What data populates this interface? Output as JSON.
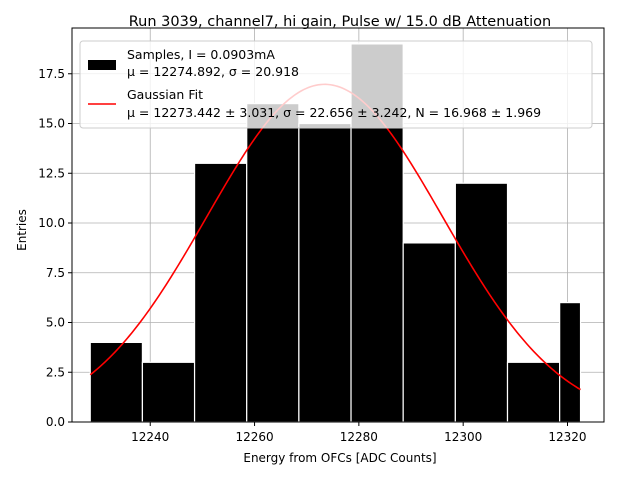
{
  "chart_data": {
    "type": "bar",
    "title": "Run 3039, channel7, hi gain, Pulse w/ 15.0 dB Attenuation",
    "xlabel": "Energy from OFCs [ADC Counts]",
    "ylabel": "Entries",
    "xlim": [
      12225,
      12327
    ],
    "ylim": [
      0,
      19.8
    ],
    "grid": true,
    "legend_position": "top-left",
    "bar_color": "#000000",
    "edge_color": "#ffffff",
    "grid_color": "#b0b0b0",
    "fit_color": "#ff0000",
    "x_ticks": [
      12240,
      12260,
      12280,
      12300,
      12320
    ],
    "x_tick_labels": [
      "12240",
      "12260",
      "12280",
      "12300",
      "12320"
    ],
    "y_ticks": [
      0,
      2.5,
      5,
      7.5,
      10,
      12.5,
      15,
      17.5
    ],
    "y_tick_labels": [
      "0.0",
      "2.5",
      "5.0",
      "7.5",
      "10.0",
      "12.5",
      "15.0",
      "17.5"
    ],
    "bins": {
      "edges": [
        12228.5,
        12238.5,
        12248.5,
        12258.5,
        12268.5,
        12278.5,
        12288.5,
        12298.5,
        12308.5,
        12318.5,
        12322.5
      ],
      "counts": [
        4,
        3,
        13,
        16,
        15,
        19,
        9,
        12,
        3,
        6
      ]
    },
    "series": [
      {
        "name": "Samples, I = 0.0903mA",
        "type": "histogram",
        "legend_line2": "μ = 12274.892, σ = 20.918"
      },
      {
        "name": "Gaussian Fit",
        "type": "line",
        "legend_line2": "μ = 12273.442 ± 3.031, σ = 22.656 ± 3.242, N = 16.968 ± 1.969",
        "fit_params": {
          "mu": 12273.442,
          "sigma": 22.656,
          "amplitude": 16.968
        },
        "x_range": [
          12228.5,
          12322.5
        ]
      }
    ]
  }
}
